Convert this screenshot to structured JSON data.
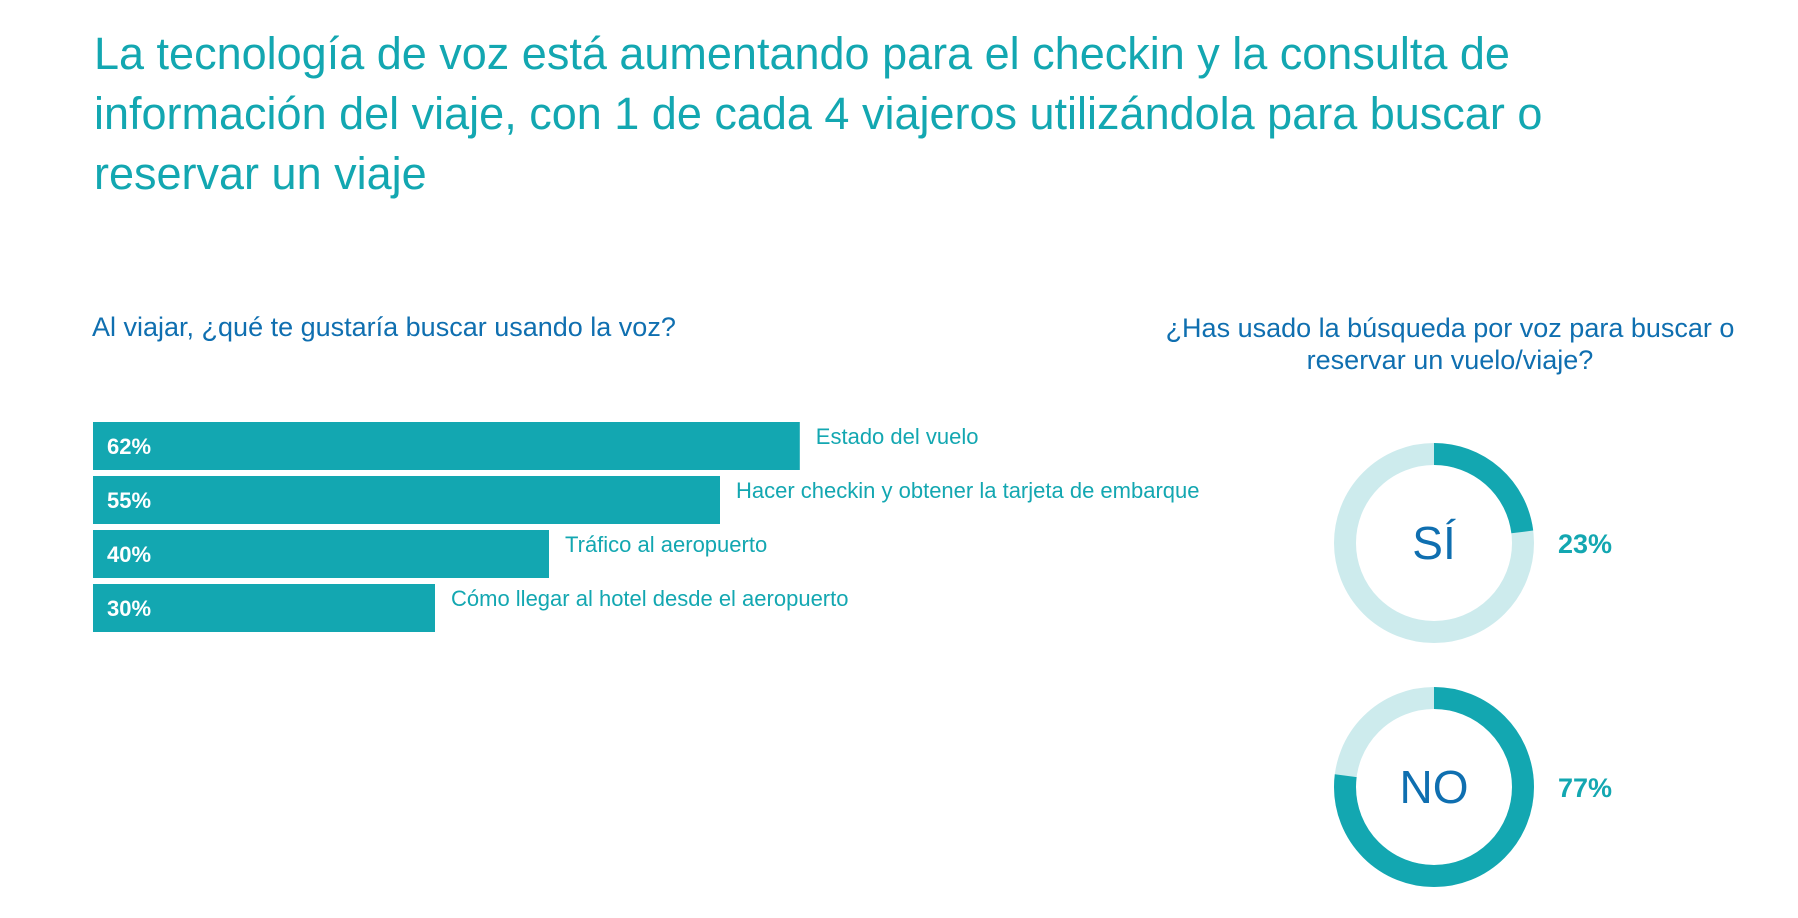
{
  "title": "La tecnología de voz está aumentando para el checkin y la consulta de información del viaje, con 1 de cada 4 viajeros utilizándola para buscar o reservar un viaje",
  "colors": {
    "accent": "#13a7b1",
    "dark_blue": "#0f6fb0",
    "donut_track": "#cdebed"
  },
  "chart_data": [
    {
      "type": "bar",
      "orientation": "horizontal",
      "title": "Al viajar, ¿qué te gustaría buscar usando la voz?",
      "categories": [
        "Estado del vuelo",
        "Hacer checkin y obtener la tarjeta de embarque",
        "Tráfico al aeropuerto",
        "Cómo llegar al hotel desde el aeropuerto"
      ],
      "values": [
        62,
        55,
        40,
        30
      ],
      "value_labels": [
        "62%",
        "55%",
        "40%",
        "30%"
      ],
      "xlim": [
        0,
        100
      ]
    },
    {
      "type": "pie",
      "donut": true,
      "title": "¿Has usado la búsqueda por voz para buscar o reservar un vuelo/viaje?",
      "categories": [
        "SÍ",
        "NO"
      ],
      "values": [
        23,
        77
      ],
      "value_labels": [
        "23%",
        "77%"
      ]
    }
  ]
}
